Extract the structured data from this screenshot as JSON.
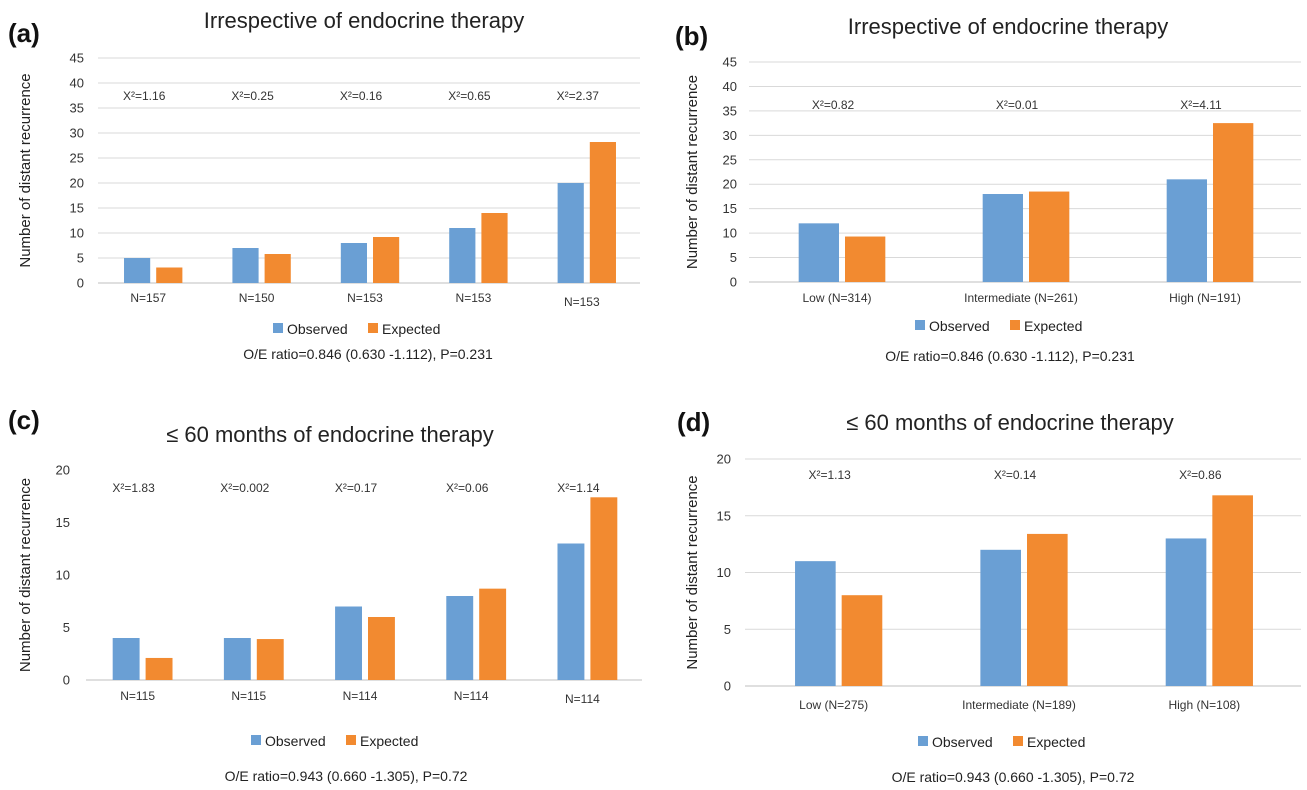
{
  "chart_data": [
    {
      "panel": "(a)",
      "type": "bar",
      "title": "Irrespective of endocrine therapy",
      "ylabel": "Number of distant recurrence",
      "ylim": [
        0,
        45
      ],
      "yticks": [
        0,
        5,
        10,
        15,
        20,
        25,
        30,
        35,
        40,
        45
      ],
      "categories": [
        "N=157",
        "N=150",
        "N=153",
        "N=153",
        "N=153"
      ],
      "chi2_labels": [
        "X²=1.16",
        "X²=0.25",
        "X²=0.16",
        "X²=0.65",
        "X²=2.37"
      ],
      "series": [
        {
          "name": "Observed",
          "values": [
            5,
            7,
            8,
            11,
            20
          ],
          "color": "#6a9fd4"
        },
        {
          "name": "Expected",
          "values": [
            3.1,
            5.8,
            9.2,
            14,
            28.2
          ],
          "color": "#f28a30"
        }
      ],
      "grid": true,
      "legend_position": "bottom",
      "footnote": "O/E ratio=0.846 (0.630 -1.112), P=0.231"
    },
    {
      "panel": "(b)",
      "type": "bar",
      "title": "Irrespective of endocrine therapy",
      "ylabel": "Number of distant recurrence",
      "ylim": [
        0,
        45
      ],
      "yticks": [
        0,
        5,
        10,
        15,
        20,
        25,
        30,
        35,
        40,
        45
      ],
      "categories": [
        "Low (N=314)",
        "Intermediate (N=261)",
        "High (N=191)"
      ],
      "chi2_labels": [
        "X²=0.82",
        "X²=0.01",
        "X²=4.11"
      ],
      "series": [
        {
          "name": "Observed",
          "values": [
            12,
            18,
            21
          ],
          "color": "#6a9fd4"
        },
        {
          "name": "Expected",
          "values": [
            9.3,
            18.5,
            32.5
          ],
          "color": "#f28a30"
        }
      ],
      "grid": true,
      "legend_position": "bottom",
      "footnote": "O/E ratio=0.846 (0.630 -1.112), P=0.231"
    },
    {
      "panel": "(c)",
      "type": "bar",
      "title": "≤ 60 months of endocrine therapy",
      "ylabel": "Number of distant recurrence",
      "ylim": [
        0,
        20
      ],
      "yticks": [
        0,
        5,
        10,
        15,
        20
      ],
      "categories": [
        "N=115",
        "N=115",
        "N=114",
        "N=114",
        "N=114"
      ],
      "chi2_labels": [
        "X²=1.83",
        "X²=0.002",
        "X²=0.17",
        "X²=0.06",
        "X²=1.14"
      ],
      "series": [
        {
          "name": "Observed",
          "values": [
            4,
            4,
            7,
            8,
            13
          ],
          "color": "#6a9fd4"
        },
        {
          "name": "Expected",
          "values": [
            2.1,
            3.9,
            6,
            8.7,
            17.4
          ],
          "color": "#f28a30"
        }
      ],
      "grid": false,
      "legend_position": "bottom",
      "footnote": "O/E ratio=0.943 (0.660 -1.305), P=0.72"
    },
    {
      "panel": "(d)",
      "type": "bar",
      "title": "≤ 60 months of endocrine therapy",
      "ylabel": "Number of distant recurrence",
      "ylim": [
        0,
        20
      ],
      "yticks": [
        0,
        5,
        10,
        15,
        20
      ],
      "categories": [
        "Low (N=275)",
        "Intermediate (N=189)",
        "High (N=108)"
      ],
      "chi2_labels": [
        "X²=1.13",
        "X²=0.14",
        "X²=0.86"
      ],
      "series": [
        {
          "name": "Observed",
          "values": [
            11,
            12,
            13
          ],
          "color": "#6a9fd4"
        },
        {
          "name": "Expected",
          "values": [
            8,
            13.4,
            16.8
          ],
          "color": "#f28a30"
        }
      ],
      "grid": true,
      "legend_position": "bottom",
      "footnote": "O/E ratio=0.943 (0.660 -1.305), P=0.72"
    }
  ]
}
